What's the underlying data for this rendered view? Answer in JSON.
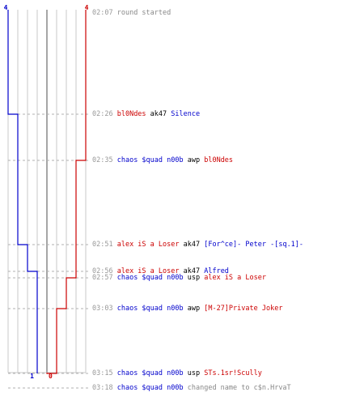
{
  "colors": {
    "blue_team": "#0000cc",
    "red_team": "#cc0000",
    "grid_line": "#c8c8c8",
    "center_line": "#808080",
    "dashed_line": "#b0b0b0",
    "timestamp": "#999999",
    "info_text": "#888888",
    "weapon_text": "#000000"
  },
  "scores": {
    "blue_start": "4",
    "red_start": "4",
    "blue_end": "1",
    "red_end": "0"
  },
  "events": [
    {
      "time": "02:07",
      "type": "info",
      "text": "round started",
      "blue_alive": 4,
      "red_alive": 4
    },
    {
      "time": "02:26",
      "type": "kill",
      "killer": "bl0Ndes",
      "killer_team": "red",
      "weapon": "ak47",
      "victim": "Silence",
      "victim_team": "blue",
      "blue_alive": 3,
      "red_alive": 4
    },
    {
      "time": "02:35",
      "type": "kill",
      "killer": "chaos $quad n00b",
      "killer_team": "blue",
      "weapon": "awp",
      "victim": "bl0Ndes",
      "victim_team": "red",
      "blue_alive": 3,
      "red_alive": 3
    },
    {
      "time": "02:51",
      "type": "kill",
      "killer": "alex iS a Loser",
      "killer_team": "red",
      "weapon": "ak47",
      "victim": "[For^ce]- Peter -[sq.1]-",
      "victim_team": "blue",
      "blue_alive": 2,
      "red_alive": 3
    },
    {
      "time": "02:56",
      "type": "kill",
      "killer": "alex iS a Loser",
      "killer_team": "red",
      "weapon": "ak47",
      "victim": "Alfred",
      "victim_team": "blue",
      "blue_alive": 1,
      "red_alive": 3
    },
    {
      "time": "02:57",
      "type": "kill",
      "killer": "chaos $quad n00b",
      "killer_team": "blue",
      "weapon": "usp",
      "victim": "alex iS a Loser",
      "victim_team": "red",
      "blue_alive": 1,
      "red_alive": 2
    },
    {
      "time": "03:03",
      "type": "kill",
      "killer": "chaos $quad n00b",
      "killer_team": "blue",
      "weapon": "awp",
      "victim": "[M-27]Private Joker",
      "victim_team": "red",
      "blue_alive": 1,
      "red_alive": 1
    },
    {
      "time": "03:15",
      "type": "kill",
      "killer": "chaos $quad n00b",
      "killer_team": "blue",
      "weapon": "usp",
      "victim": "STs.1sr!Scully",
      "victim_team": "red",
      "blue_alive": 1,
      "red_alive": 0
    },
    {
      "time": "03:18",
      "type": "rename",
      "player": "chaos $quad n00b",
      "player_team": "blue",
      "action_text": "changed name to c$n.HrvaT"
    }
  ]
}
